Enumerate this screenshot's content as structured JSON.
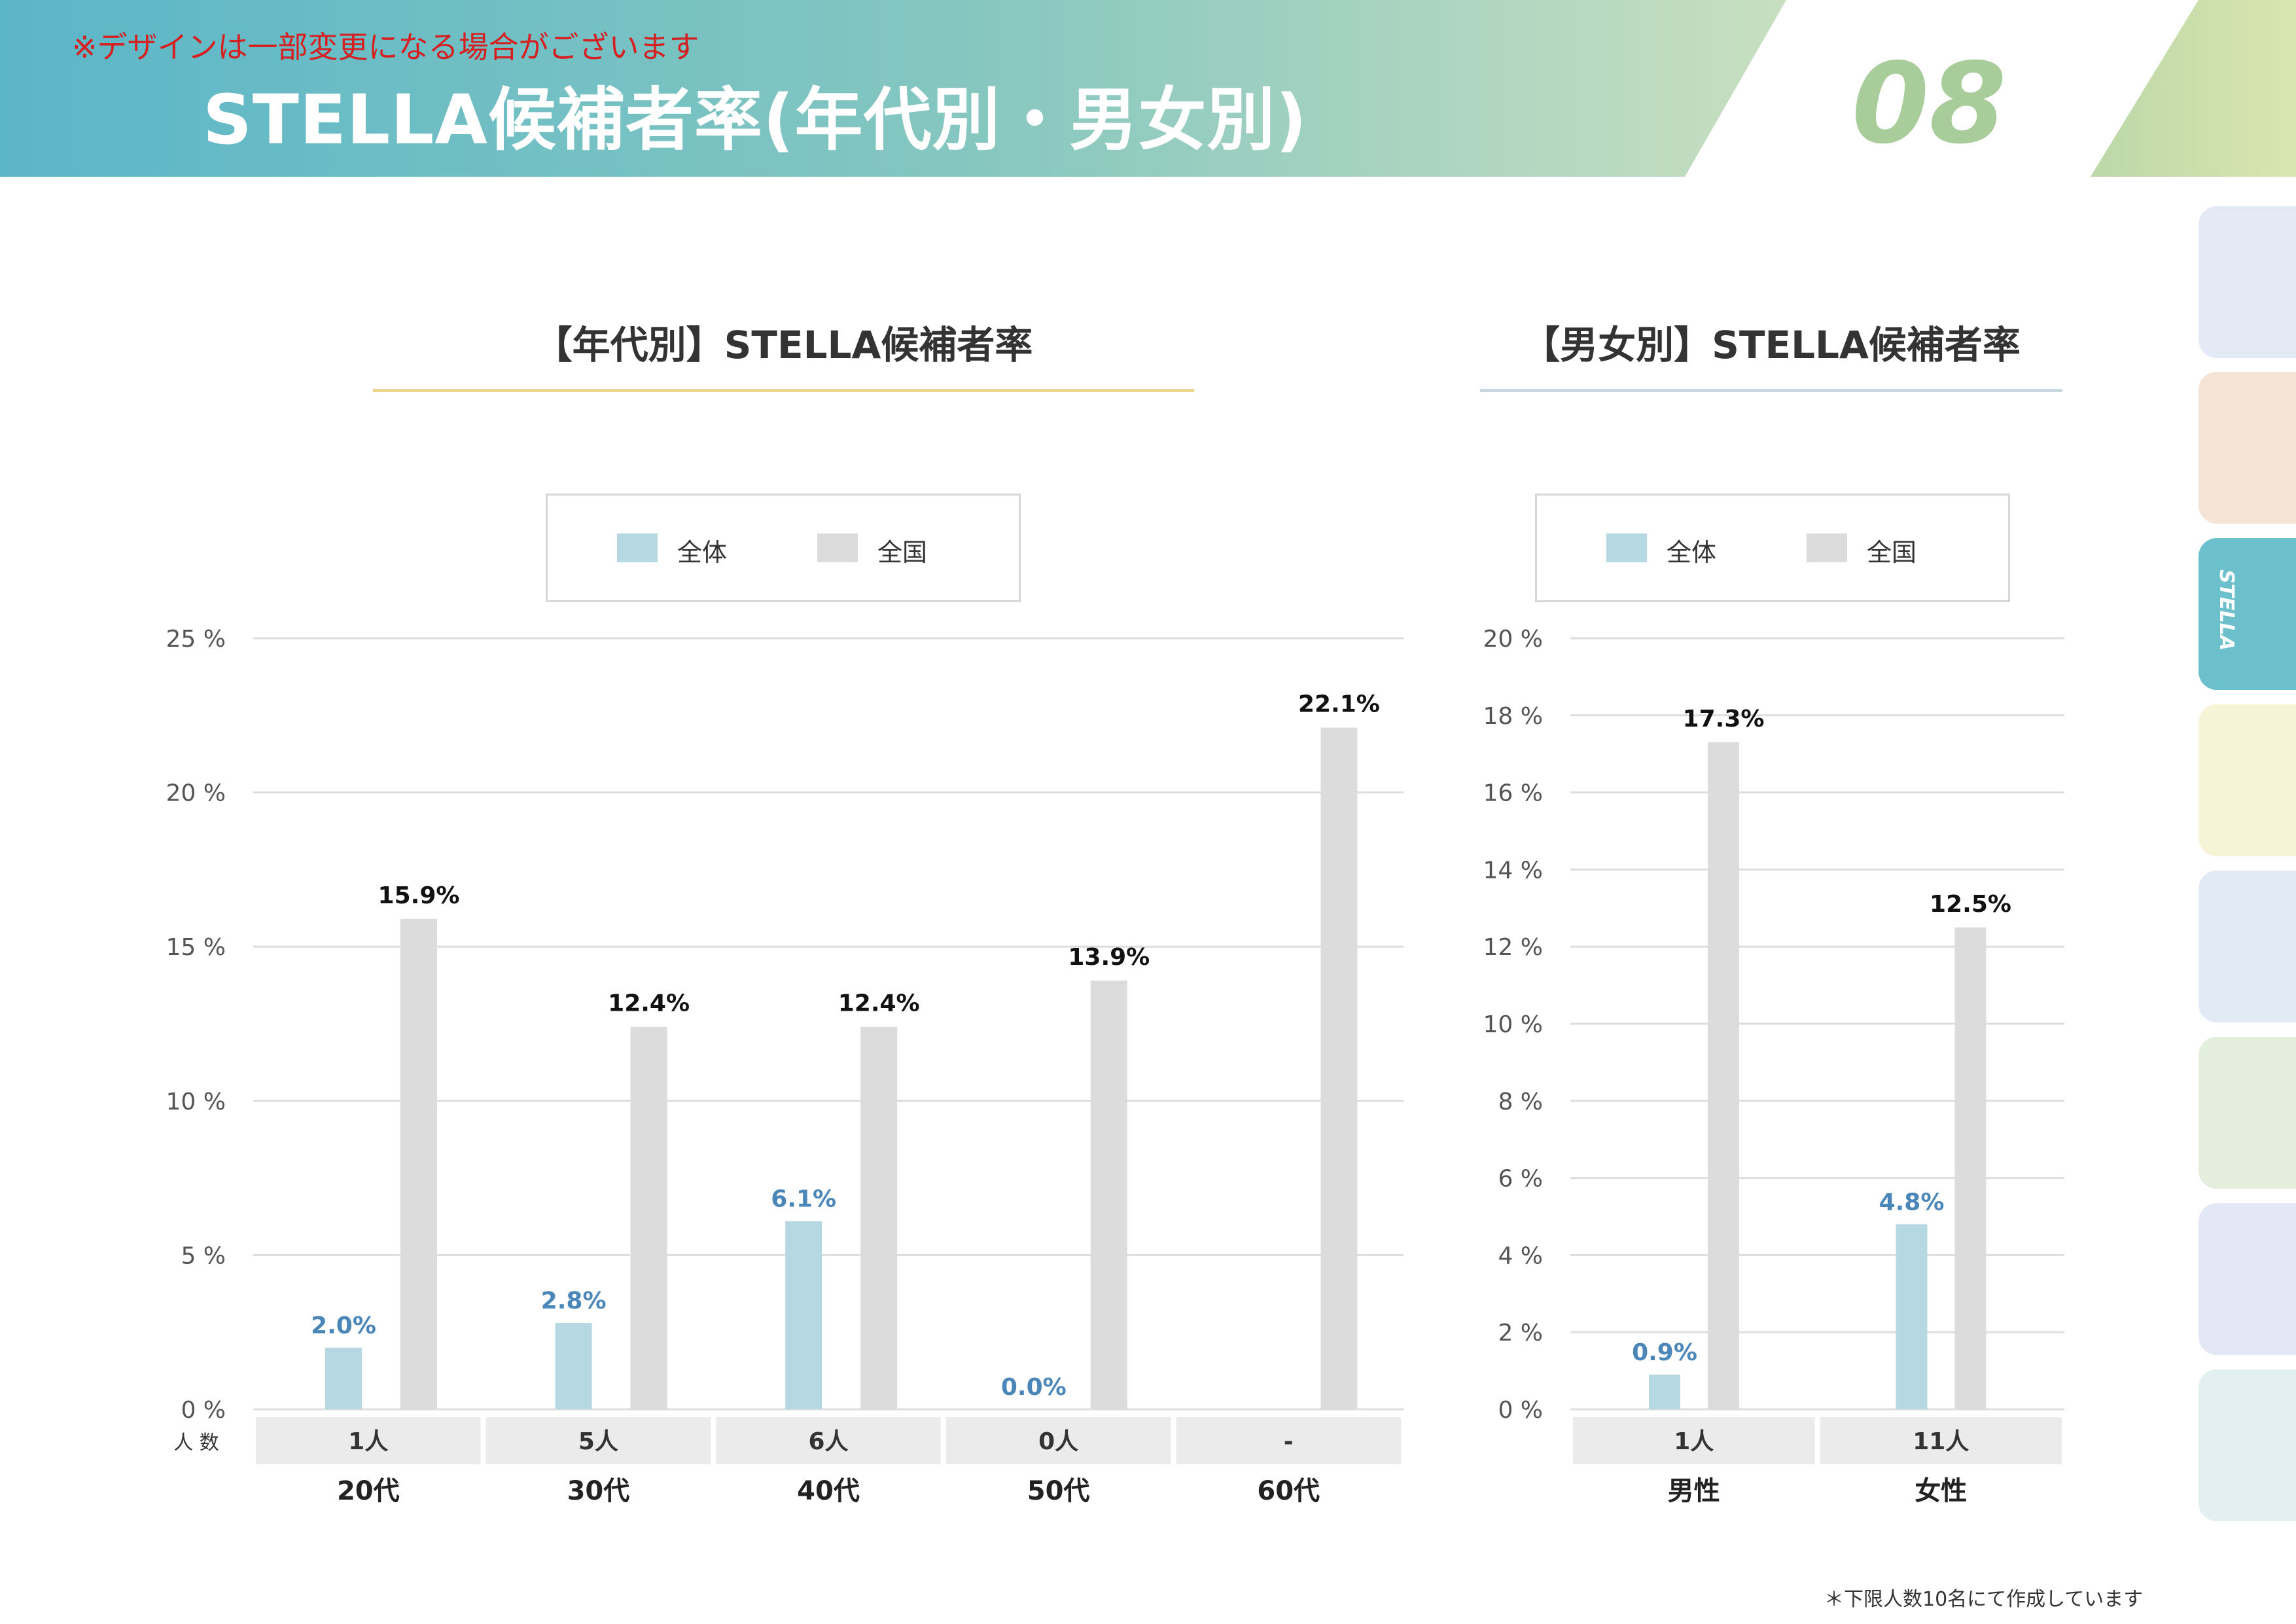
{
  "header": {
    "notice": "※デザインは一部変更になる場合がございます",
    "title": "STELLA候補者率(年代別・男女別)",
    "page_number": "08"
  },
  "side_tabs": {
    "active_label": "STELLA",
    "colors": [
      "#e4eaf5",
      "#f5e3d6",
      "#6cc0cc",
      "#f7f3d6",
      "#e2eaf5",
      "#e3eedd",
      "#e2e8f5",
      "#e2f0f2"
    ]
  },
  "colors": {
    "series_all": "#b6d8e2",
    "series_national": "#dcdcdc",
    "label_all": "#4a86b8",
    "label_national": "#111111",
    "count_bg": "#ebebeb",
    "grid": "#dddddd",
    "rule_age": "#efd590",
    "rule_gender": "#c6d8e0"
  },
  "legend": {
    "all": "全体",
    "national": "全国"
  },
  "count_label": "人 数",
  "footnote": "＊下限人数10名にて作成しています",
  "chart_data": [
    {
      "type": "bar",
      "title": "【年代別】STELLA候補者率",
      "categories": [
        "20代",
        "30代",
        "40代",
        "50代",
        "60代"
      ],
      "counts": [
        "1人",
        "5人",
        "6人",
        "0人",
        "-"
      ],
      "ylim": [
        0,
        25
      ],
      "yticks": [
        0,
        5,
        10,
        15,
        20,
        25
      ],
      "ytick_labels": [
        "0 %",
        "5 %",
        "10 %",
        "15 %",
        "20 %",
        "25 %"
      ],
      "series": [
        {
          "name": "全体",
          "values": [
            2.0,
            2.8,
            6.1,
            0.0,
            null
          ],
          "labels": [
            "2.0%",
            "2.8%",
            "6.1%",
            "0.0%",
            ""
          ]
        },
        {
          "name": "全国",
          "values": [
            15.9,
            12.4,
            12.4,
            13.9,
            22.1
          ],
          "labels": [
            "15.9%",
            "12.4%",
            "12.4%",
            "13.9%",
            "22.1%"
          ]
        }
      ],
      "grid": true,
      "legend_position": "top-center"
    },
    {
      "type": "bar",
      "title": "【男女別】STELLA候補者率",
      "categories": [
        "男性",
        "女性"
      ],
      "counts": [
        "1人",
        "11人"
      ],
      "ylim": [
        0,
        20
      ],
      "yticks": [
        0,
        2,
        4,
        6,
        8,
        10,
        12,
        14,
        16,
        18,
        20
      ],
      "ytick_labels": [
        "0 %",
        "2 %",
        "4 %",
        "6 %",
        "8 %",
        "10 %",
        "12 %",
        "14 %",
        "16 %",
        "18 %",
        "20 %"
      ],
      "series": [
        {
          "name": "全体",
          "values": [
            0.9,
            4.8
          ],
          "labels": [
            "0.9%",
            "4.8%"
          ]
        },
        {
          "name": "全国",
          "values": [
            17.3,
            12.5
          ],
          "labels": [
            "17.3%",
            "12.5%"
          ]
        }
      ],
      "grid": true,
      "legend_position": "top-center"
    }
  ]
}
